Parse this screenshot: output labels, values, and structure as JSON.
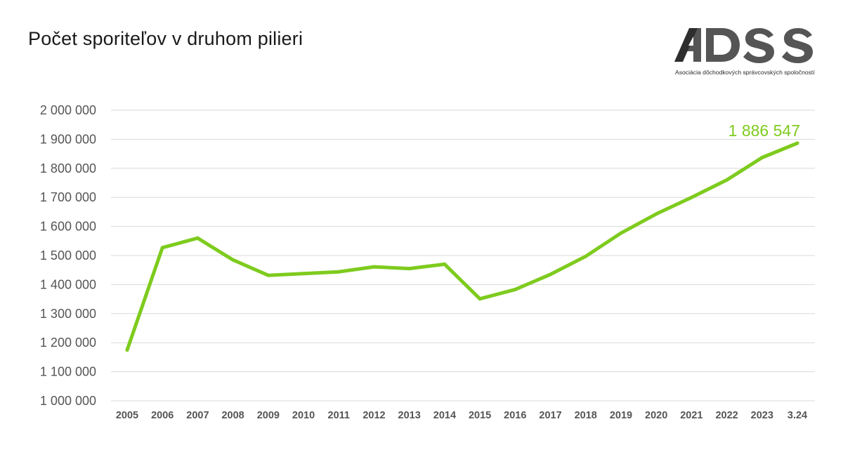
{
  "header": {
    "title": "Počet sporiteľov v druhom pilieri"
  },
  "logo": {
    "text": "ADSS",
    "subtitle": "Asociácia dôchodkových správcovských spoločností",
    "color": "#4a4a4a"
  },
  "colors": {
    "line": "#7ecb1e",
    "grid": "#d9d9d9",
    "callout": "#7ecb1e"
  },
  "chart_data": {
    "type": "line",
    "title": "Počet sporiteľov v druhom pilieri",
    "xlabel": "",
    "ylabel": "",
    "ylim": [
      1000000,
      2000000
    ],
    "yticks": [
      1000000,
      1100000,
      1200000,
      1300000,
      1400000,
      1500000,
      1600000,
      1700000,
      1800000,
      1900000,
      2000000
    ],
    "ytick_labels": [
      "1 000 000",
      "1 100 000",
      "1 200 000",
      "1 300 000",
      "1 400 000",
      "1 500 000",
      "1 600 000",
      "1 700 000",
      "1 800 000",
      "1 900 000",
      "2 000 000"
    ],
    "grid": true,
    "legend": "none",
    "categories": [
      "2005",
      "2006",
      "2007",
      "2008",
      "2009",
      "2010",
      "2011",
      "2012",
      "2013",
      "2014",
      "2015",
      "2016",
      "2017",
      "2018",
      "2019",
      "2020",
      "2021",
      "2022",
      "2023",
      "3.24"
    ],
    "series": [
      {
        "values": [
          1175000,
          1527000,
          1560000,
          1485000,
          1432000,
          1438000,
          1444000,
          1461000,
          1455000,
          1470000,
          1351000,
          1383000,
          1435000,
          1497000,
          1577000,
          1643000,
          1700000,
          1760000,
          1837000,
          1886547
        ]
      }
    ],
    "annotations": [
      {
        "label": "1 886 547",
        "category": "3.24",
        "value": 1886547
      }
    ]
  }
}
